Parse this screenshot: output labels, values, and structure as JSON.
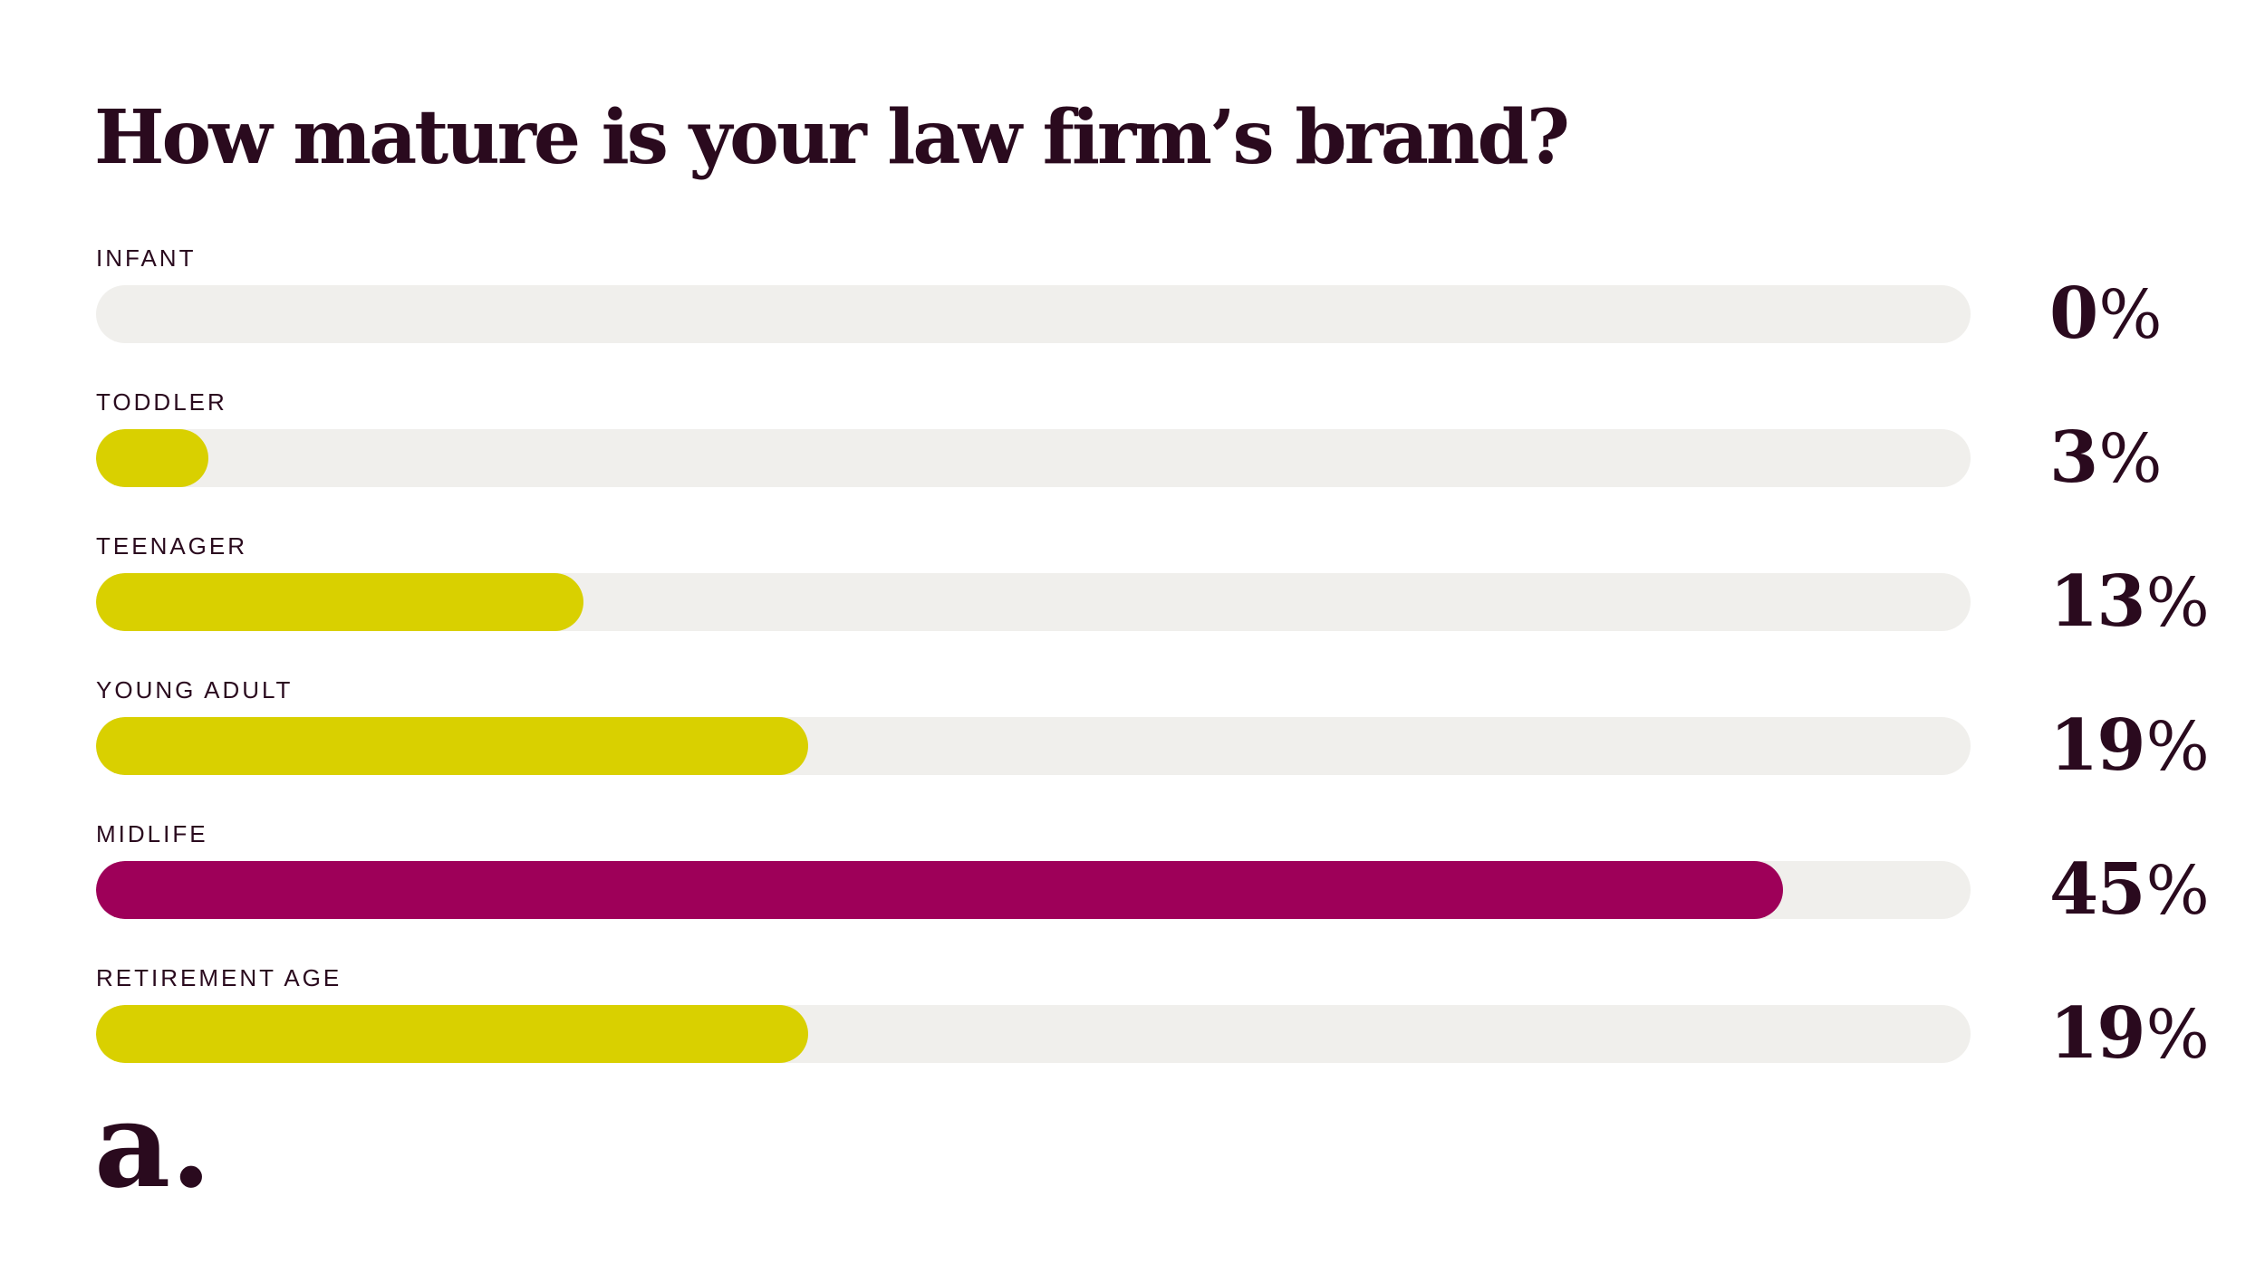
{
  "header": {
    "title": "How mature is your law firm’s brand?"
  },
  "logo": {
    "text": "a."
  },
  "colors": {
    "track": "#f0efec",
    "fill_default": "#d9d000",
    "fill_highlight": "#9e0059",
    "text": "#2a0a1e"
  },
  "chart_data": {
    "type": "bar",
    "orientation": "horizontal",
    "title": "How mature is your law firm’s brand?",
    "categories": [
      "INFANT",
      "TODDLER",
      "TEENAGER",
      "YOUNG ADULT",
      "MIDLIFE",
      "RETIREMENT AGE"
    ],
    "values": [
      0,
      3,
      13,
      19,
      45,
      19
    ],
    "value_labels": [
      "0",
      "3",
      "13",
      "19",
      "45",
      "19"
    ],
    "unit": "%",
    "xlim": [
      0,
      100
    ],
    "highlight_category": "MIDLIFE",
    "grid": false,
    "legend": "none"
  }
}
